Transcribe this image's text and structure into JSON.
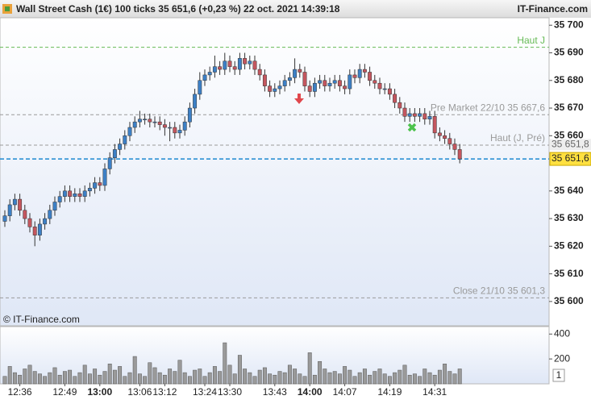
{
  "chart_data": {
    "type": "candlestick",
    "title": "Wall Street Cash (1€) 100 ticks 35 651,6 (+0,23 %) 22 oct. 2021 14:39:18",
    "source": "IT-Finance.com",
    "watermark": "© IT-Finance.com",
    "up_color": "#3d80c6",
    "down_color": "#c4565e",
    "volume_color": "#9a9a9a",
    "categories": [
      null,
      null,
      null,
      "12:36",
      null,
      null,
      null,
      null,
      null,
      null,
      null,
      null,
      "12:49",
      null,
      null,
      null,
      null,
      null,
      null,
      "13:00",
      null,
      null,
      null,
      null,
      null,
      null,
      null,
      "13:06",
      null,
      null,
      null,
      null,
      "13:12",
      null,
      null,
      null,
      null,
      null,
      null,
      null,
      "13:24",
      null,
      null,
      null,
      null,
      "13:30",
      null,
      null,
      null,
      null,
      null,
      null,
      null,
      null,
      "13:43",
      null,
      null,
      null,
      null,
      null,
      null,
      "14:00",
      null,
      null,
      null,
      null,
      null,
      null,
      "14:07",
      null,
      null,
      null,
      null,
      null,
      null,
      null,
      null,
      "14:19",
      null,
      null,
      null,
      null,
      null,
      null,
      null,
      null,
      "14:31",
      null,
      null,
      null,
      null,
      null
    ],
    "open": [
      35629,
      35631,
      35635,
      35637,
      35633,
      35630,
      35627,
      35624,
      35628,
      35630,
      35633,
      35636,
      35638,
      35640,
      35638,
      35639,
      35638,
      35640,
      35641,
      35643,
      35642,
      35648,
      35652,
      35655,
      35657,
      35660,
      35663,
      35665,
      35666,
      35666,
      35665,
      35665,
      35664,
      35663,
      35663,
      35661,
      35662,
      35665,
      35670,
      35675,
      35680,
      35682,
      35683,
      35685,
      35684,
      35687,
      35685,
      35684,
      35688,
      35686,
      35687,
      35684,
      35682,
      35678,
      35676,
      35677,
      35678,
      35680,
      35681,
      35684,
      35683,
      35678,
      35676,
      35679,
      35680,
      35678,
      35679,
      35680,
      35678,
      35677,
      35682,
      35681,
      35684,
      35683,
      35680,
      35679,
      35677,
      35677,
      35675,
      35672,
      35670,
      35667,
      35668,
      35667,
      35668,
      35666,
      35667,
      35661,
      35660,
      35659,
      35657,
      35655
    ],
    "high": [
      35633,
      35637,
      35639,
      35639,
      35635,
      35632,
      35629,
      35630,
      35632,
      35635,
      35638,
      35640,
      35642,
      35642,
      35641,
      35641,
      35642,
      35643,
      35645,
      35645,
      35650,
      35654,
      35657,
      35659,
      35662,
      35665,
      35667,
      35669,
      35668,
      35668,
      35667,
      35667,
      35666,
      35665,
      35665,
      35664,
      35667,
      35672,
      35677,
      35683,
      35684,
      35685,
      35689,
      35687,
      35690,
      35689,
      35687,
      35690,
      35690,
      35689,
      35689,
      35686,
      35684,
      35680,
      35679,
      35680,
      35682,
      35683,
      35688,
      35686,
      35685,
      35680,
      35681,
      35682,
      35682,
      35681,
      35682,
      35682,
      35680,
      35684,
      35684,
      35686,
      35686,
      35685,
      35682,
      35681,
      35679,
      35679,
      35677,
      35674,
      35672,
      35670,
      35670,
      35670,
      35670,
      35669,
      35669,
      35663,
      35662,
      35661,
      35659,
      35657
    ],
    "low": [
      35627,
      35629,
      35633,
      35631,
      35628,
      35625,
      35620,
      35622,
      35626,
      35628,
      35631,
      35634,
      35636,
      35636,
      35636,
      35636,
      35636,
      35638,
      35639,
      35640,
      35640,
      35646,
      35650,
      35653,
      35655,
      35658,
      35661,
      35663,
      35664,
      35663,
      35663,
      35662,
      35660,
      35658,
      35659,
      35659,
      35660,
      35663,
      35668,
      35673,
      35678,
      35680,
      35681,
      35682,
      35682,
      35683,
      35682,
      35682,
      35684,
      35684,
      35682,
      35680,
      35676,
      35674,
      35674,
      35675,
      35676,
      35678,
      35679,
      35681,
      35676,
      35674,
      35674,
      35677,
      35676,
      35676,
      35677,
      35676,
      35675,
      35675,
      35679,
      35679,
      35681,
      35678,
      35677,
      35675,
      35675,
      35673,
      35670,
      35668,
      35665,
      35665,
      35665,
      35665,
      35664,
      35664,
      35659,
      35658,
      35657,
      35655,
      35653,
      35650
    ],
    "close": [
      35631,
      35635,
      35637,
      35633,
      35630,
      35627,
      35624,
      35628,
      35630,
      35633,
      35636,
      35638,
      35640,
      35638,
      35639,
      35638,
      35640,
      35641,
      35643,
      35642,
      35648,
      35652,
      35655,
      35657,
      35660,
      35663,
      35665,
      35666,
      35666,
      35665,
      35665,
      35664,
      35663,
      35663,
      35661,
      35662,
      35665,
      35670,
      35675,
      35680,
      35682,
      35683,
      35685,
      35684,
      35687,
      35685,
      35684,
      35688,
      35686,
      35687,
      35684,
      35682,
      35678,
      35676,
      35677,
      35678,
      35680,
      35681,
      35684,
      35683,
      35678,
      35676,
      35679,
      35680,
      35678,
      35679,
      35680,
      35678,
      35677,
      35682,
      35681,
      35684,
      35683,
      35680,
      35679,
      35677,
      35677,
      35675,
      35672,
      35670,
      35667,
      35668,
      35667,
      35668,
      35666,
      35667,
      35661,
      35660,
      35659,
      35657,
      35655,
      35651.6
    ],
    "volume": [
      60,
      140,
      90,
      70,
      120,
      150,
      100,
      80,
      60,
      90,
      130,
      70,
      100,
      110,
      60,
      90,
      150,
      80,
      120,
      70,
      100,
      160,
      110,
      140,
      60,
      90,
      220,
      80,
      60,
      170,
      130,
      90,
      70,
      120,
      100,
      190,
      90,
      60,
      110,
      120,
      60,
      90,
      140,
      100,
      330,
      150,
      80,
      230,
      120,
      90,
      60,
      110,
      130,
      80,
      70,
      100,
      90,
      150,
      120,
      80,
      60,
      250,
      70,
      180,
      120,
      90,
      100,
      80,
      140,
      110,
      60,
      90,
      120,
      70,
      100,
      120,
      80,
      60,
      90,
      110,
      150,
      70,
      80,
      60,
      120,
      90,
      70,
      110,
      160,
      100,
      80,
      120
    ],
    "ylim": [
      35591.2,
      35702.7
    ],
    "yticks": [
      {
        "value": 35600,
        "label": "35 600"
      },
      {
        "value": 35610,
        "label": "35 610"
      },
      {
        "value": 35620,
        "label": "35 620"
      },
      {
        "value": 35630,
        "label": "35 630"
      },
      {
        "value": 35640,
        "label": "35 640"
      },
      {
        "value": 35660,
        "label": "35 660"
      },
      {
        "value": 35670,
        "label": "35 670"
      },
      {
        "value": 35680,
        "label": "35 680"
      },
      {
        "value": 35690,
        "label": "35 690"
      },
      {
        "value": 35700,
        "label": "35 700"
      }
    ],
    "volume_ylim": [
      0,
      460
    ],
    "volume_yticks": [
      200,
      400
    ],
    "volume_scale_label": "1",
    "levels": [
      {
        "label": "Haut J",
        "value": 35692,
        "color": "#66bb55"
      },
      {
        "label": "Pre Market 22/10 35 667,6",
        "value": 35667.6,
        "color": "#9a9a9a"
      },
      {
        "label": "Haut (J, Pré)",
        "value": 35656.6,
        "color": "#9a9a9a"
      },
      {
        "label": "Close 21/10 35 601,3",
        "value": 35601.3,
        "color": "#9a9a9a"
      }
    ],
    "last_price": {
      "value": 35651.6,
      "label": "35 651,6",
      "color": "#1e88d0"
    },
    "previous_tag": {
      "value": 35651.8,
      "label": "35 651,8"
    }
  }
}
